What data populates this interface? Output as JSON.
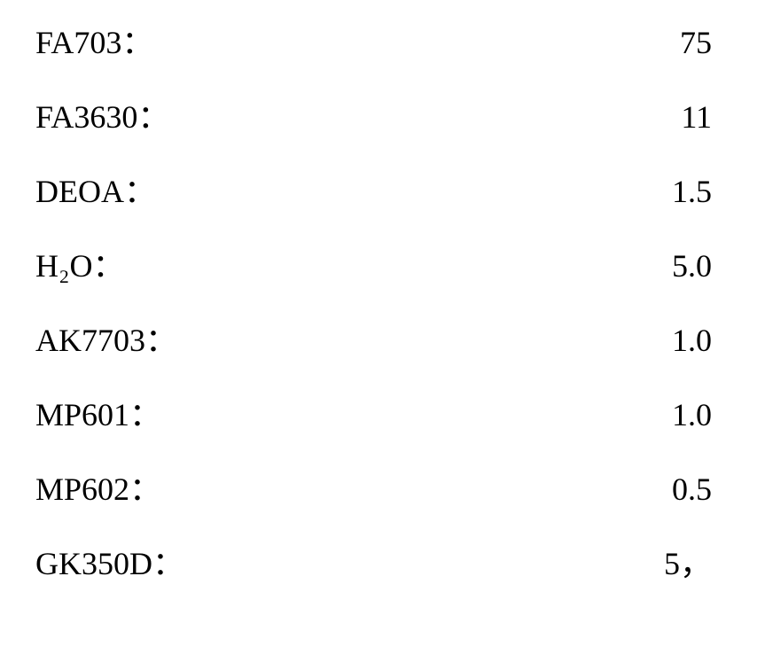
{
  "text_color": "#000000",
  "background_color": "#ffffff",
  "font_family": "Times New Roman, serif",
  "font_size_pt": 28,
  "rows": [
    {
      "label": "FA703：",
      "value": "75"
    },
    {
      "label": "FA3630：",
      "value": "11"
    },
    {
      "label": "DEOA：",
      "value": "1.5"
    },
    {
      "label": "H₂O：",
      "value": "5.0"
    },
    {
      "label": "AK7703：",
      "value": "1.0"
    },
    {
      "label": "MP601：",
      "value": "1.0"
    },
    {
      "label": "MP602：",
      "value": "0.5"
    },
    {
      "label": "GK350D：",
      "value": "5，"
    }
  ]
}
